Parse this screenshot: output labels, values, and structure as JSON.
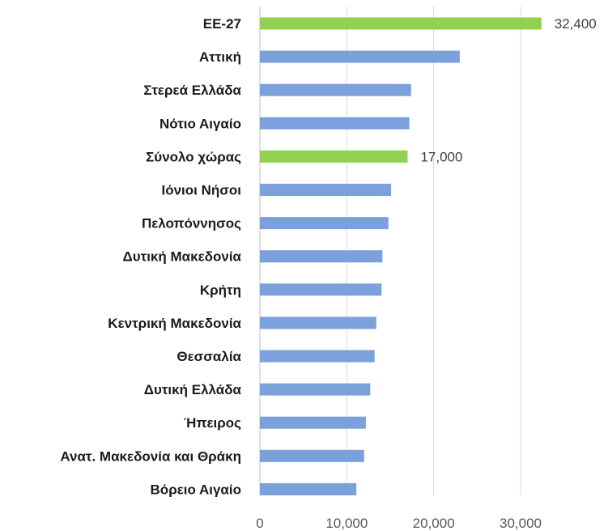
{
  "chart_data": {
    "type": "bar",
    "orientation": "horizontal",
    "categories": [
      "ΕΕ-27",
      "Αττική",
      "Στερεά Ελλάδα",
      "Νότιο Αιγαίο",
      "Σύνολο χώρας",
      "Ιόνιοι Νήσοι",
      "Πελοπόννησος",
      "Δυτική Μακεδονία",
      "Κρήτη",
      "Κεντρική Μακεδονία",
      "Θεσσαλία",
      "Δυτική Ελλάδα",
      "Ήπειρος",
      "Ανατ. Μακεδονία και Θράκη",
      "Βόρειο Αιγαίο"
    ],
    "values": [
      32400,
      23000,
      17400,
      17200,
      17000,
      15100,
      14800,
      14100,
      14000,
      13400,
      13200,
      12700,
      12200,
      12000,
      11100
    ],
    "highlighted": [
      "ΕΕ-27",
      "Σύνολο χώρας"
    ],
    "data_labels": {
      "ΕΕ-27": "32,400",
      "Σύνολο χώρας": "17,000"
    },
    "x_ticks": [
      "0",
      "10,000",
      "20,000",
      "30,000"
    ],
    "x_tick_values": [
      0,
      10000,
      20000,
      30000
    ],
    "xlim": [
      0,
      35000
    ],
    "grid": "vertical",
    "legend": "none",
    "title": "",
    "xlabel": "",
    "ylabel": "",
    "colors": {
      "bar": "#7ba0dc",
      "highlight": "#92d050",
      "grid": "#d9d9d9"
    }
  }
}
